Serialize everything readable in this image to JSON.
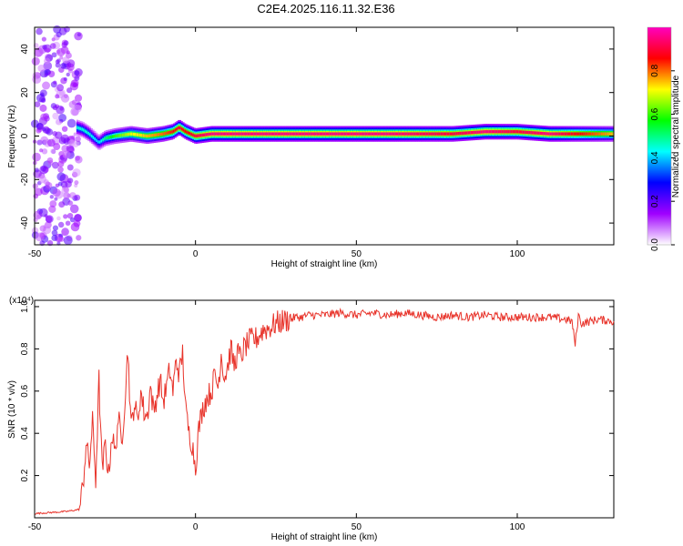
{
  "figure": {
    "title": "C2E4.2025.116.11.32.E36"
  },
  "chart_data": [
    {
      "type": "heatmap",
      "xlabel": "Height of straight line (km)",
      "ylabel": "Frequency (Hz)",
      "xlim": [
        -50,
        130
      ],
      "ylim": [
        -50,
        50
      ],
      "xticks": [
        -50,
        0,
        50,
        100
      ],
      "yticks": [
        -40,
        -20,
        0,
        20,
        40
      ],
      "colorbar": {
        "label": "Normalized spectral amplitude",
        "range": [
          0,
          1
        ],
        "ticks": [
          "0.0",
          "0.2",
          "0.4",
          "0.6",
          "0.8"
        ],
        "colors": [
          "#ffffff",
          "#a000ff",
          "#0000ff",
          "#00ffff",
          "#00ff00",
          "#ffff00",
          "#ff0000",
          "#ff00c0"
        ]
      },
      "ridge": {
        "x": [
          -37,
          -35,
          -33,
          -30,
          -28,
          -25,
          -20,
          -15,
          -10,
          -7,
          -5,
          -3,
          0,
          5,
          10,
          20,
          40,
          60,
          80,
          90,
          100,
          110,
          120,
          130
        ],
        "freq": [
          4,
          3,
          1,
          -3,
          -1,
          0,
          1,
          0,
          1,
          2,
          4,
          2,
          0,
          1,
          1,
          1,
          1,
          1,
          1,
          2,
          2,
          1,
          1,
          1
        ],
        "amplitude": [
          0.45,
          0.45,
          0.45,
          0.4,
          0.5,
          0.6,
          0.7,
          0.75,
          0.8,
          0.85,
          0.9,
          0.85,
          0.9,
          0.95,
          0.95,
          0.95,
          0.95,
          0.95,
          0.9,
          0.95,
          0.9,
          0.95,
          0.85,
          0.75
        ]
      },
      "noise_region_x": [
        -50,
        -36
      ]
    },
    {
      "type": "line",
      "xlabel": "Height of straight line (km)",
      "ylabel": "SNR (10 * v/v)",
      "scale_label": "(x10⁴)",
      "xlim": [
        -50,
        130
      ],
      "ylim": [
        0,
        1.03
      ],
      "xticks": [
        -50,
        0,
        50,
        100
      ],
      "yticks": [
        0.2,
        0.4,
        0.6,
        0.8,
        1.0
      ],
      "color": "#e8332a",
      "series": [
        {
          "x": [
            -50,
            -45,
            -40,
            -36,
            -35,
            -34,
            -33,
            -32,
            -31,
            -30,
            -29,
            -28,
            -27,
            -26,
            -25,
            -24,
            -23,
            -22,
            -21,
            -20,
            -19,
            -18,
            -17,
            -16,
            -15,
            -14,
            -13,
            -12,
            -11,
            -10,
            -9,
            -8,
            -7,
            -6,
            -5,
            -4,
            -3,
            -2,
            -1,
            0,
            1,
            2,
            3,
            4,
            5,
            6,
            7,
            8,
            9,
            10,
            11,
            12,
            13,
            14,
            15,
            17,
            19,
            21,
            23,
            25,
            27,
            29,
            31,
            33,
            35,
            40,
            45,
            50,
            55,
            60,
            65,
            70,
            75,
            80,
            85,
            90,
            95,
            100,
            105,
            110,
            115,
            117,
            118,
            119,
            120,
            125,
            130
          ],
          "values": [
            0.02,
            0.025,
            0.03,
            0.04,
            0.15,
            0.35,
            0.25,
            0.45,
            0.18,
            0.65,
            0.22,
            0.35,
            0.2,
            0.4,
            0.3,
            0.48,
            0.35,
            0.55,
            0.8,
            0.42,
            0.55,
            0.45,
            0.6,
            0.5,
            0.48,
            0.62,
            0.5,
            0.58,
            0.65,
            0.55,
            0.62,
            0.7,
            0.6,
            0.75,
            0.68,
            0.78,
            0.5,
            0.4,
            0.35,
            0.24,
            0.42,
            0.5,
            0.55,
            0.58,
            0.6,
            0.68,
            0.62,
            0.78,
            0.66,
            0.72,
            0.8,
            0.72,
            0.78,
            0.76,
            0.8,
            0.84,
            0.85,
            0.89,
            0.9,
            0.92,
            0.93,
            0.94,
            0.95,
            0.95,
            0.96,
            0.96,
            0.97,
            0.96,
            0.97,
            0.96,
            0.97,
            0.96,
            0.95,
            0.96,
            0.95,
            0.96,
            0.95,
            0.95,
            0.95,
            0.95,
            0.94,
            0.93,
            0.82,
            0.96,
            0.92,
            0.94,
            0.93
          ]
        }
      ]
    }
  ]
}
